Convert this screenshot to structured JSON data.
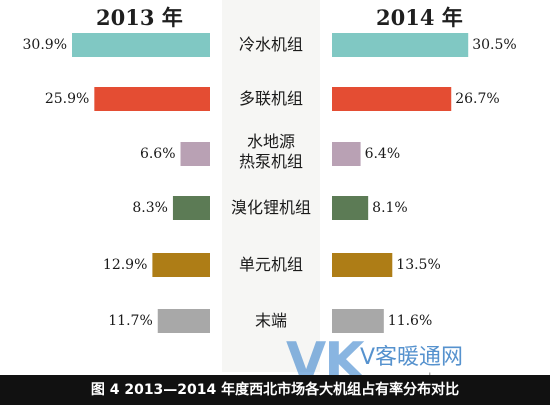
{
  "chart_data": {
    "type": "bar",
    "left_year": "2013 年",
    "right_year": "2014 年",
    "categories": [
      "冷水机组",
      "多联机组",
      "水地源\n热泵机组",
      "溴化锂机组",
      "单元机组",
      "末端"
    ],
    "series": [
      {
        "name": "2013 年",
        "values": [
          30.9,
          25.9,
          6.6,
          8.3,
          12.9,
          11.7
        ],
        "labels": [
          "30.9%",
          "25.9%",
          "6.6%",
          "8.3%",
          "12.9%",
          "11.7%"
        ]
      },
      {
        "name": "2014 年",
        "values": [
          30.5,
          26.7,
          6.4,
          8.1,
          13.5,
          11.6
        ],
        "labels": [
          "30.5%",
          "26.7%",
          "6.4%",
          "8.1%",
          "13.5%",
          "11.6%"
        ]
      }
    ],
    "colors": [
      "#80c8c3",
      "#e44d33",
      "#b9a1b4",
      "#5c7b55",
      "#ae7d16",
      "#a8a8a8"
    ],
    "caption": "图 4   2013—2014 年度西北市场各大机组占有率分布对比"
  },
  "watermark": {
    "logo": "VK",
    "text": "V客暖通网",
    "url": "www.kvav.com"
  }
}
